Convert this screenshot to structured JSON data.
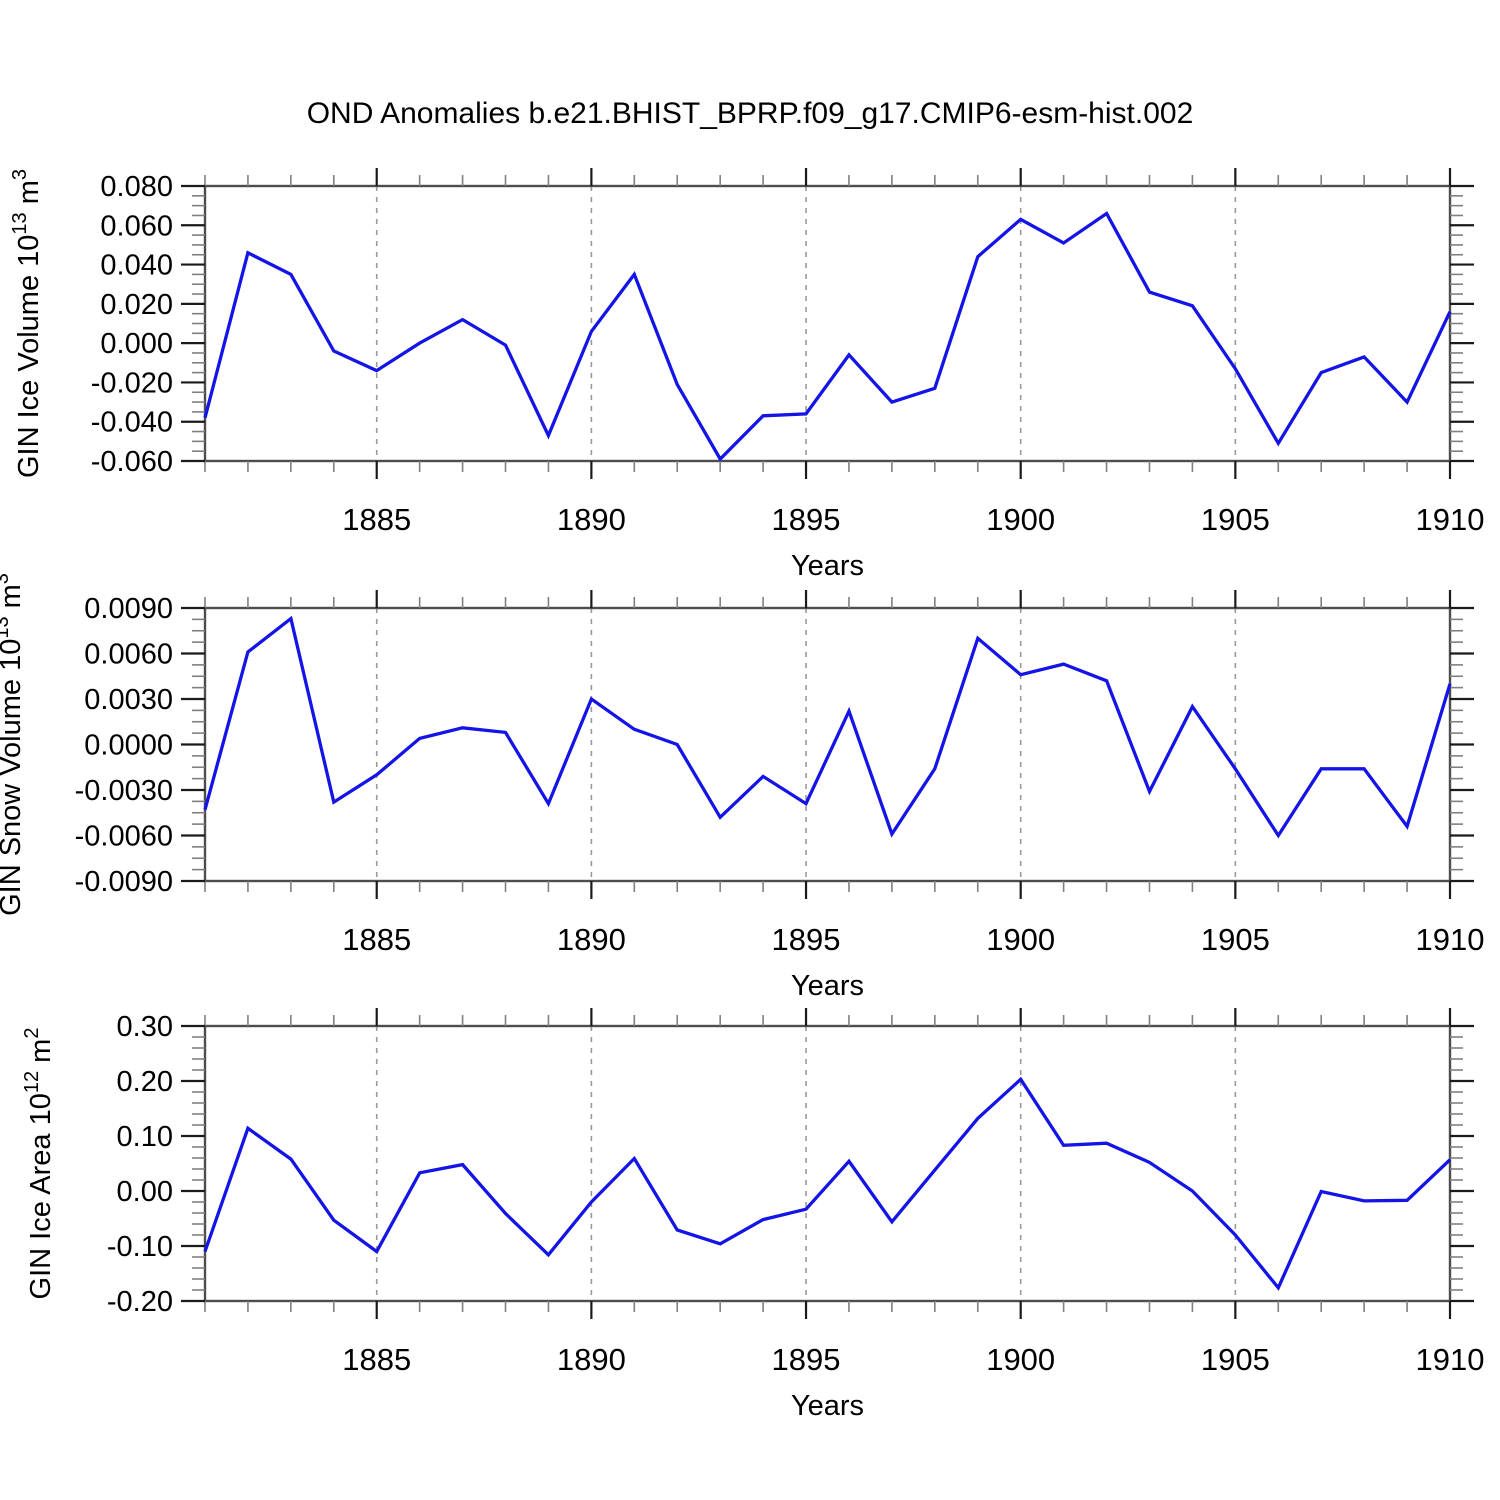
{
  "figure_title": "OND Anomalies b.e21.BHIST_BPRP.f09_g17.CMIP6-esm-hist.002",
  "colors": {
    "line": "#1414e6",
    "frame": "#4d4d4d",
    "major_tick": "#1a1a1a",
    "minor_tick": "#808080",
    "gridline": "#999999",
    "text": "#000000",
    "background": "#ffffff"
  },
  "chart_data": [
    {
      "name": "gin-ice-volume",
      "type": "line",
      "xlabel": "Years",
      "ylabel": "GIN Ice Volume 10¹³ m³",
      "ylabel_parts": [
        [
          "GIN Ice Volume 10",
          false
        ],
        [
          "13",
          true
        ],
        [
          " m",
          false
        ],
        [
          "3",
          true
        ]
      ],
      "ylim": [
        -0.06,
        0.08
      ],
      "yticks": {
        "values": [
          0.08,
          0.06,
          0.04,
          0.02,
          0.0,
          -0.02,
          -0.04,
          -0.06
        ],
        "labels": [
          "0.080",
          "0.060",
          "0.040",
          "0.020",
          "0.000",
          "-0.020",
          "-0.040",
          "-0.060"
        ]
      },
      "yminor_step": 0.005,
      "xticks": {
        "values": [
          1885,
          1890,
          1895,
          1900,
          1905,
          1910
        ],
        "labels": [
          "1885",
          "1890",
          "1895",
          "1900",
          "1905",
          "1910"
        ]
      },
      "xminor_step": 1,
      "gridline_years": [
        1885,
        1890,
        1895,
        1900,
        1905
      ],
      "x": [
        1881,
        1882,
        1883,
        1884,
        1885,
        1886,
        1887,
        1888,
        1889,
        1890,
        1891,
        1892,
        1893,
        1894,
        1895,
        1896,
        1897,
        1898,
        1899,
        1900,
        1901,
        1902,
        1903,
        1904,
        1905,
        1906,
        1907,
        1908,
        1909,
        1910
      ],
      "values": [
        -0.038,
        0.046,
        0.035,
        -0.004,
        -0.014,
        0.0,
        0.012,
        -0.001,
        -0.047,
        0.006,
        0.035,
        -0.021,
        -0.059,
        -0.037,
        -0.036,
        -0.006,
        -0.03,
        -0.023,
        0.044,
        0.063,
        0.051,
        0.066,
        0.026,
        0.019,
        -0.013,
        -0.051,
        -0.015,
        -0.007,
        -0.03,
        0.016
      ]
    },
    {
      "name": "gin-snow-volume",
      "type": "line",
      "xlabel": "Years",
      "ylabel": "GIN Snow Volume 10¹³ m³",
      "ylabel_parts": [
        [
          "GIN Snow Volume 10",
          false
        ],
        [
          "13",
          true
        ],
        [
          " m",
          false
        ],
        [
          "3",
          true
        ]
      ],
      "ylim": [
        -0.009,
        0.009
      ],
      "yticks": {
        "values": [
          0.009,
          0.006,
          0.003,
          0.0,
          -0.003,
          -0.006,
          -0.009
        ],
        "labels": [
          "0.0090",
          "0.0060",
          "0.0030",
          "0.0000",
          "-0.0030",
          "-0.0060",
          "-0.0090"
        ]
      },
      "yminor_step": 0.00075,
      "xticks": {
        "values": [
          1885,
          1890,
          1895,
          1900,
          1905,
          1910
        ],
        "labels": [
          "1885",
          "1890",
          "1895",
          "1900",
          "1905",
          "1910"
        ]
      },
      "xminor_step": 1,
      "gridline_years": [
        1885,
        1890,
        1895,
        1900,
        1905
      ],
      "x": [
        1881,
        1882,
        1883,
        1884,
        1885,
        1886,
        1887,
        1888,
        1889,
        1890,
        1891,
        1892,
        1893,
        1894,
        1895,
        1896,
        1897,
        1898,
        1899,
        1900,
        1901,
        1902,
        1903,
        1904,
        1905,
        1906,
        1907,
        1908,
        1909,
        1910
      ],
      "values": [
        -0.0043,
        0.0061,
        0.0083,
        -0.0038,
        -0.002,
        0.0004,
        0.0011,
        0.0008,
        -0.0039,
        0.003,
        0.001,
        0.0,
        -0.0048,
        -0.0021,
        -0.0039,
        0.0022,
        -0.0059,
        -0.0016,
        0.007,
        0.0046,
        0.0053,
        0.0042,
        -0.0031,
        0.0025,
        -0.0016,
        -0.006,
        -0.0016,
        -0.0016,
        -0.0054,
        0.004
      ]
    },
    {
      "name": "gin-ice-area",
      "type": "line",
      "xlabel": "Years",
      "ylabel": "GIN Ice Area 10¹² m²",
      "ylabel_parts": [
        [
          "GIN Ice Area 10",
          false
        ],
        [
          "12",
          true
        ],
        [
          " m",
          false
        ],
        [
          "2",
          true
        ]
      ],
      "ylim": [
        -0.2,
        0.3
      ],
      "yticks": {
        "values": [
          0.3,
          0.2,
          0.1,
          0.0,
          -0.1,
          -0.2
        ],
        "labels": [
          "0.30",
          "0.20",
          "0.10",
          "0.00",
          "-0.10",
          "-0.20"
        ]
      },
      "yminor_step": 0.02,
      "xticks": {
        "values": [
          1885,
          1890,
          1895,
          1900,
          1905,
          1910
        ],
        "labels": [
          "1885",
          "1890",
          "1895",
          "1900",
          "1905",
          "1910"
        ]
      },
      "xminor_step": 1,
      "gridline_years": [
        1885,
        1890,
        1895,
        1900,
        1905
      ],
      "x": [
        1881,
        1882,
        1883,
        1884,
        1885,
        1886,
        1887,
        1888,
        1889,
        1890,
        1891,
        1892,
        1893,
        1894,
        1895,
        1896,
        1897,
        1898,
        1899,
        1900,
        1901,
        1902,
        1903,
        1904,
        1905,
        1906,
        1907,
        1908,
        1909,
        1910
      ],
      "values": [
        -0.11,
        0.114,
        0.058,
        -0.053,
        -0.11,
        0.033,
        0.048,
        -0.041,
        -0.116,
        -0.02,
        0.059,
        -0.071,
        -0.096,
        -0.052,
        -0.033,
        0.054,
        -0.056,
        0.038,
        0.132,
        0.203,
        0.083,
        0.087,
        0.052,
        0.0,
        -0.08,
        -0.176,
        -0.001,
        -0.018,
        -0.017,
        0.057
      ]
    }
  ]
}
